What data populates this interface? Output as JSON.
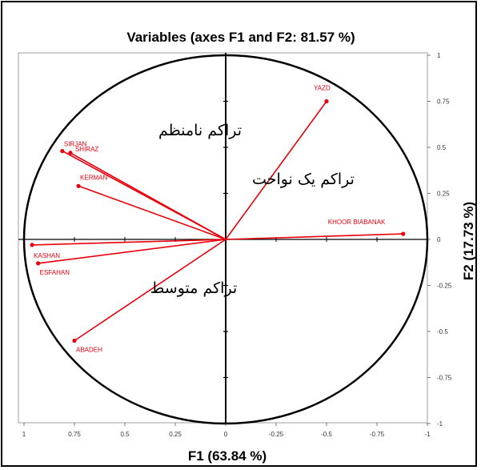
{
  "chart_data": {
    "type": "scatter",
    "title": "Variables (axes F1 and F2: 81.57 %)",
    "xlabel": "F1 (63.84 %)",
    "ylabel": "F2 (17.73 %)",
    "xlim": [
      1,
      -1
    ],
    "ylim": [
      -1,
      1
    ],
    "x_ticks": [
      "1",
      "0.75",
      "0.5",
      "0.25",
      "0",
      "-0.25",
      "-0.5",
      "-0.75",
      "-1"
    ],
    "y_ticks": [
      "1",
      "0.75",
      "0.5",
      "0.25",
      "0",
      "-0.25",
      "-0.5",
      "-0.75",
      "-1"
    ],
    "grid": false,
    "series": [
      {
        "points": [
          {
            "label": "YAZD",
            "x": -0.5,
            "y": 0.75
          },
          {
            "label": "KHOOR BIABANAK",
            "x": -0.88,
            "y": 0.03
          },
          {
            "label": "SIRJAN",
            "x": 0.81,
            "y": 0.48
          },
          {
            "label": "SHIRAZ",
            "x": 0.77,
            "y": 0.47
          },
          {
            "label": "KERMAN",
            "x": 0.73,
            "y": 0.29
          },
          {
            "label": "KASHAN",
            "x": 0.96,
            "y": -0.03
          },
          {
            "label": "ESFAHAN",
            "x": 0.93,
            "y": -0.13
          },
          {
            "label": "ABADEH",
            "x": 0.75,
            "y": -0.55
          }
        ]
      }
    ],
    "annotations": [
      "تراکم نامنظم",
      "تراکم یک نواخت",
      "تراکم متوسط"
    ],
    "colors": {
      "vectors": "#e8000b",
      "circle": "#000000",
      "axes": "#000000"
    }
  }
}
